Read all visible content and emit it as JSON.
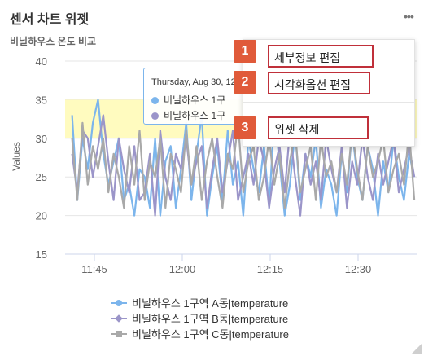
{
  "widget": {
    "title": "센서 차트 위젯",
    "subtitle": "비닐하우스 온도 비교",
    "more_icon": "more-icon"
  },
  "menu": {
    "items": [
      {
        "badge": "1",
        "label": "세부정보 편집"
      },
      {
        "badge": "2",
        "label": "시각화옵션 편집"
      },
      {
        "badge": "3",
        "label": "위젯 삭제"
      }
    ]
  },
  "tooltip": {
    "date": "Thursday, Aug 30, 12",
    "rows": [
      "비닐하우스 1구",
      "비닐하우스 1구"
    ]
  },
  "chart_data": {
    "type": "line",
    "ylabel": "Values",
    "xlabel": "",
    "title": "",
    "ylim": [
      15,
      40
    ],
    "y_ticks": [
      "15",
      "20",
      "25",
      "30",
      "35",
      "40"
    ],
    "x_ticks": [
      "11:45",
      "12:00",
      "12:15",
      "12:30"
    ],
    "x_tick_minutes": [
      45,
      60,
      75,
      90
    ],
    "xlim_minutes": [
      40,
      100
    ],
    "plot_band": {
      "from": 30,
      "to": 35,
      "color": "#fffbbf"
    },
    "series": [
      {
        "name": "비닐하우스 1구역 A동|temperature",
        "color": "#7cb5ec",
        "marker": "circle",
        "values": [
          33,
          22,
          30,
          26,
          32,
          35,
          28,
          24,
          27,
          30,
          22,
          24,
          20,
          26,
          25,
          21,
          30,
          20,
          27,
          29,
          21,
          26,
          32,
          22,
          28,
          33,
          20,
          25,
          29,
          22,
          31,
          24,
          27,
          20,
          30,
          26,
          23,
          29,
          21,
          33,
          27,
          20,
          24,
          31,
          22,
          28,
          25,
          30,
          21,
          26,
          24,
          20,
          28,
          23,
          31,
          25,
          22,
          29,
          26,
          20,
          27,
          23,
          30,
          25,
          22,
          28,
          25
        ]
      },
      {
        "name": "비닐하우스 1구역 B동|temperature",
        "color": "#9b95c9",
        "marker": "diamond",
        "values": [
          28,
          23,
          31,
          30,
          25,
          29,
          33,
          27,
          22,
          30,
          26,
          23,
          29,
          22,
          23,
          28,
          20,
          31,
          25,
          22,
          28,
          26,
          30,
          24,
          27,
          29,
          21,
          26,
          30,
          23,
          27,
          31,
          22,
          25,
          28,
          24,
          30,
          27,
          21,
          26,
          29,
          23,
          31,
          25,
          20,
          28,
          24,
          27,
          22,
          30,
          26,
          23,
          29,
          21,
          27,
          24,
          30,
          25,
          22,
          28,
          24,
          27,
          30,
          23,
          26,
          29,
          25
        ]
      },
      {
        "name": "비닐하우스 1구역 C동|temperature",
        "color": "#a9a9a9",
        "marker": "square",
        "values": [
          30,
          22,
          32,
          24,
          29,
          26,
          30,
          23,
          28,
          25,
          21,
          29,
          24,
          31,
          22,
          27,
          25,
          30,
          21,
          28,
          26,
          23,
          31,
          24,
          29,
          22,
          27,
          30,
          25,
          21,
          28,
          26,
          32,
          23,
          27,
          29,
          22,
          25,
          30,
          24,
          28,
          21,
          27,
          31,
          23,
          26,
          29,
          22,
          30,
          25,
          27,
          23,
          28,
          24,
          31,
          26,
          22,
          29,
          25,
          27,
          30,
          23,
          26,
          28,
          24,
          31,
          22
        ]
      }
    ],
    "legend_position": "bottom"
  }
}
